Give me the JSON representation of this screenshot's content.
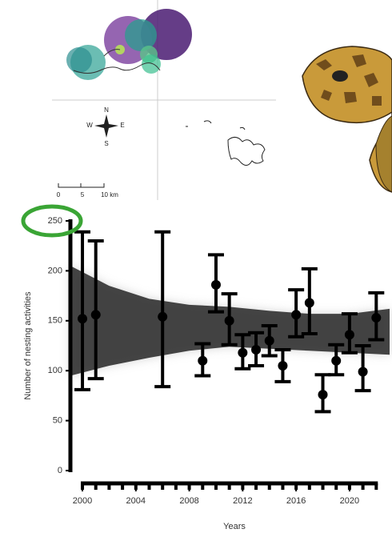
{
  "map": {
    "compass": {
      "north": "N",
      "south": "S",
      "east": "E",
      "west": "W"
    },
    "scale_labels": [
      "0",
      "5",
      "10 km"
    ]
  },
  "chart_data": {
    "type": "errorbar",
    "y_label": "Number of nesting activities",
    "x_label": "Years",
    "x": [
      2000,
      2001,
      2006,
      2009,
      2010,
      2011,
      2012,
      2013,
      2014,
      2015,
      2016,
      2017,
      2018,
      2019,
      2020,
      2021,
      2022
    ],
    "series": [
      {
        "color": "#000000",
        "values": [
          152,
          156,
          154,
          110,
          186,
          150,
          118,
          121,
          130,
          105,
          156,
          168,
          76,
          110,
          136,
          99,
          153
        ],
        "lower": [
          81,
          92,
          84,
          95,
          159,
          126,
          102,
          105,
          115,
          89,
          134,
          137,
          59,
          96,
          118,
          80,
          131
        ],
        "upper": [
          239,
          230,
          239,
          127,
          216,
          177,
          136,
          138,
          145,
          121,
          181,
          202,
          96,
          126,
          157,
          125,
          178
        ]
      }
    ],
    "ribbon": {
      "color": "#3a3a3a",
      "x": [
        1999.1,
        2002,
        2005,
        2008,
        2011,
        2014,
        2017,
        2020,
        2023
      ],
      "lower": [
        95,
        105,
        113,
        120,
        124,
        122,
        120,
        118,
        116
      ],
      "upper": [
        205,
        185,
        172,
        166,
        164,
        160,
        157,
        157,
        162
      ]
    },
    "xlim": [
      1999.1,
      2023
    ],
    "ylim": [
      0,
      250
    ],
    "xticks": [
      2000,
      2004,
      2008,
      2012,
      2016,
      2020
    ],
    "xminorticks": [
      2000,
      2001,
      2002,
      2003,
      2004,
      2005,
      2006,
      2007,
      2008,
      2009,
      2010,
      2011,
      2012,
      2013,
      2014,
      2015,
      2016,
      2017,
      2018,
      2019,
      2020,
      2021,
      2022
    ],
    "yticks": [
      0,
      50,
      100,
      150,
      200,
      250
    ]
  }
}
